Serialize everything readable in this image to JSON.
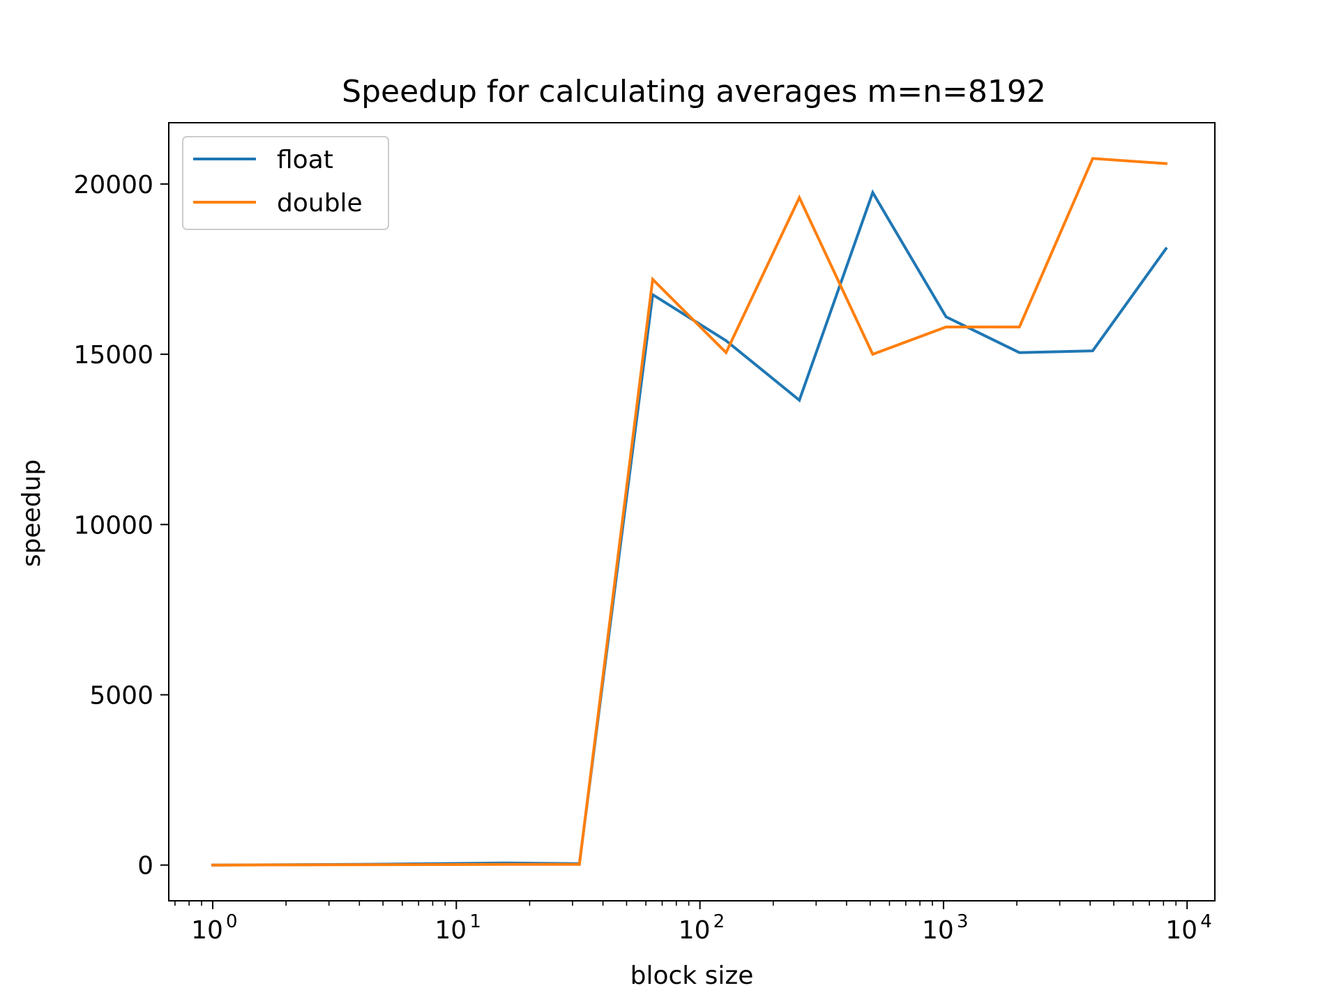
{
  "chart_data": {
    "type": "line",
    "title": "Speedup for calculating averages m=n=8192",
    "xlabel": "block size",
    "ylabel": "speedup",
    "xscale": "log",
    "xlim": [
      0.66,
      13000
    ],
    "ylim": [
      -1050,
      21800
    ],
    "grid": false,
    "legend_position": "top-left",
    "x_ticks": [
      {
        "value": 1,
        "base": "10",
        "exp": "0"
      },
      {
        "value": 10,
        "base": "10",
        "exp": "1"
      },
      {
        "value": 100,
        "base": "10",
        "exp": "2"
      },
      {
        "value": 1000,
        "base": "10",
        "exp": "3"
      },
      {
        "value": 10000,
        "base": "10",
        "exp": "4"
      }
    ],
    "y_ticks": [
      {
        "value": 0,
        "label": "0"
      },
      {
        "value": 5000,
        "label": "5000"
      },
      {
        "value": 10000,
        "label": "10000"
      },
      {
        "value": 15000,
        "label": "15000"
      },
      {
        "value": 20000,
        "label": "20000"
      }
    ],
    "x": [
      1,
      2,
      4,
      8,
      16,
      32,
      64,
      128,
      256,
      512,
      1024,
      2048,
      4096,
      8192
    ],
    "series": [
      {
        "name": "float",
        "color": "#1f77b4",
        "values": [
          0,
          10,
          20,
          40,
          60,
          40,
          16750,
          15400,
          13650,
          19750,
          16100,
          15050,
          15100,
          18100
        ]
      },
      {
        "name": "double",
        "color": "#ff7f0e",
        "values": [
          0,
          5,
          10,
          15,
          20,
          20,
          17200,
          15050,
          19600,
          15000,
          15800,
          15800,
          20750,
          20600
        ]
      }
    ]
  }
}
